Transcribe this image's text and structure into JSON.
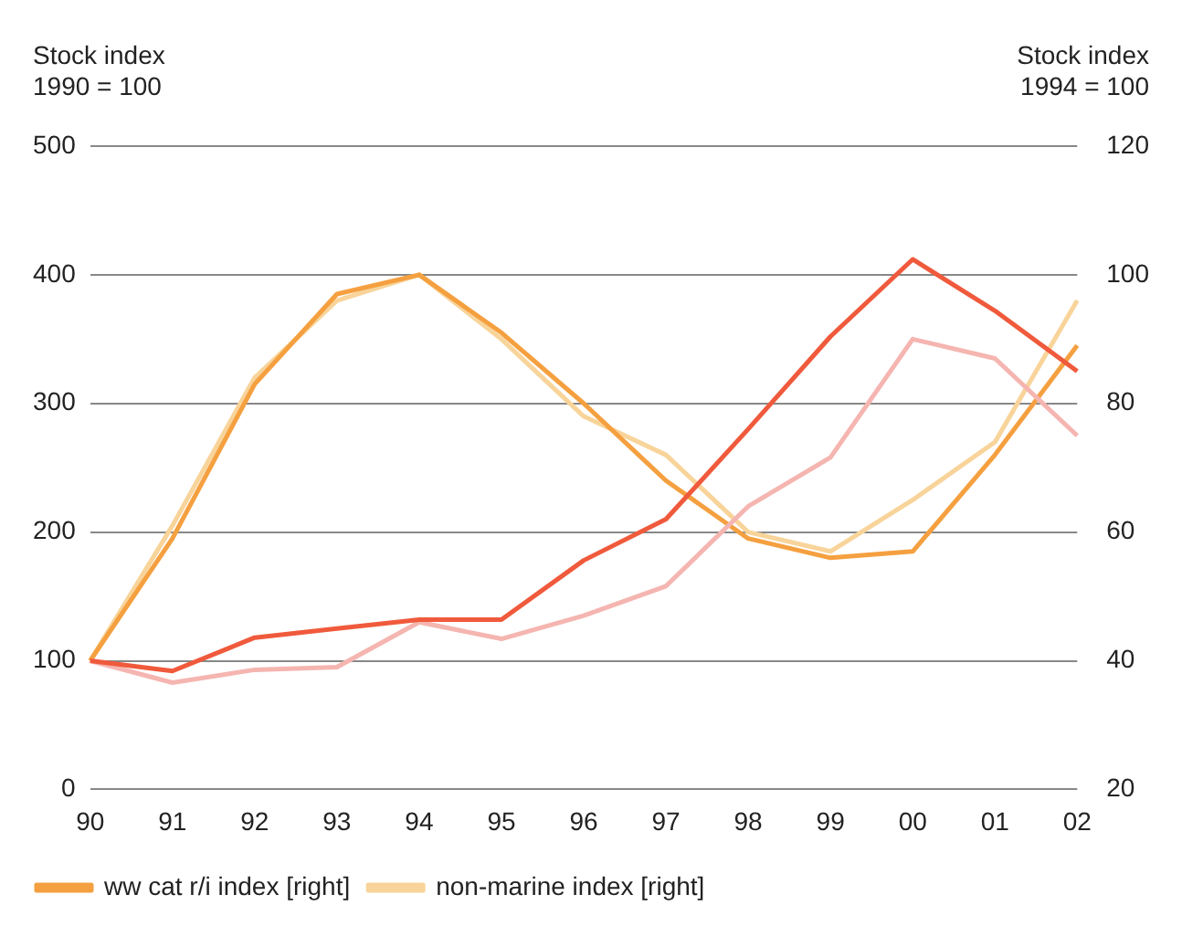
{
  "chart_data": {
    "type": "line",
    "ylabel": "Stock index\n1990 = 100",
    "y2label": "Stock index\n1994 = 100",
    "categories": [
      "90",
      "91",
      "92",
      "93",
      "94",
      "95",
      "96",
      "97",
      "98",
      "99",
      "00",
      "01",
      "02"
    ],
    "series": [
      {
        "color": "#f05a3c",
        "values": [
          100,
          92,
          118,
          125,
          132,
          132,
          178,
          210,
          280,
          352,
          412,
          372,
          325
        ]
      },
      {
        "color": "#f5b5b0",
        "values": [
          100,
          83,
          93,
          95,
          130,
          117,
          135,
          158,
          220,
          258,
          350,
          335,
          275
        ]
      },
      {
        "name": "ww cat r/i index [right]",
        "color": "#f5a040",
        "axis": "y2",
        "values": [
          40,
          59,
          83,
          97,
          100,
          91,
          80,
          68,
          59,
          56,
          57,
          72,
          89
        ]
      },
      {
        "name": "non-marine index [right]",
        "color": "#f8d49a",
        "axis": "y2",
        "values": [
          40,
          61,
          84,
          96,
          100,
          90,
          78,
          72,
          60,
          57,
          65,
          74,
          96
        ]
      }
    ],
    "ylim": [
      0,
      500
    ],
    "yticks": [
      0,
      100,
      200,
      300,
      400,
      500
    ],
    "y2lim": [
      20,
      120
    ],
    "y2ticks": [
      20,
      40,
      60,
      80,
      100,
      120
    ],
    "grid": "y",
    "legend": "bottom",
    "marker": "none",
    "line_style": "solid"
  }
}
